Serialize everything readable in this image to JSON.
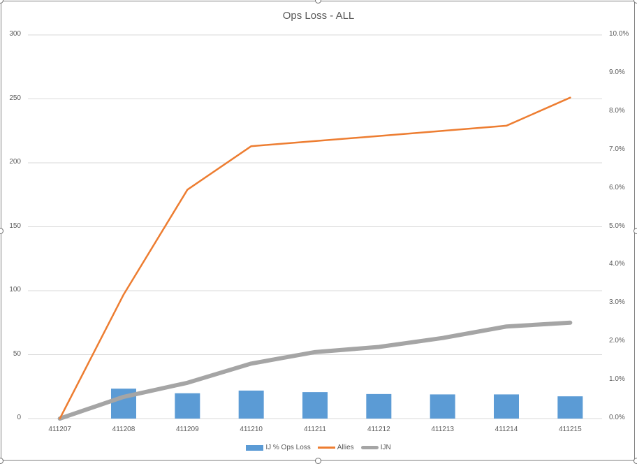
{
  "chart": {
    "title": "Ops Loss - ALL",
    "left_axis_ticks": [
      "0",
      "50",
      "100",
      "150",
      "200",
      "250",
      "300"
    ],
    "right_axis_ticks": [
      "0.0%",
      "1.0%",
      "2.0%",
      "3.0%",
      "4.0%",
      "5.0%",
      "6.0%",
      "7.0%",
      "8.0%",
      "9.0%",
      "10.0%"
    ],
    "categories": [
      "411207",
      "411208",
      "411209",
      "411210",
      "411211",
      "411212",
      "411213",
      "411214",
      "411215"
    ],
    "legend": [
      {
        "label": "IJ % Ops Loss",
        "color": "#5b9bd5",
        "kind": "bar"
      },
      {
        "label": "Allies",
        "color": "#ed7d31",
        "kind": "line"
      },
      {
        "label": "IJN",
        "color": "#a5a5a5",
        "kind": "line"
      }
    ]
  },
  "chart_data": {
    "type": "bar+line",
    "title": "Ops Loss - ALL",
    "xlabel": "",
    "ylabel": "",
    "categories": [
      "411207",
      "411208",
      "411209",
      "411210",
      "411211",
      "411212",
      "411213",
      "411214",
      "411215"
    ],
    "series": [
      {
        "name": "IJ % Ops Loss",
        "type": "bar",
        "axis": "secondary",
        "unit": "%",
        "values": [
          0.0,
          0.78,
          0.66,
          0.73,
          0.69,
          0.64,
          0.63,
          0.63,
          0.58
        ],
        "color": "#5b9bd5"
      },
      {
        "name": "Allies",
        "type": "line",
        "axis": "primary",
        "values": [
          0,
          97,
          179,
          213,
          217,
          221,
          225,
          229,
          251
        ],
        "color": "#ed7d31"
      },
      {
        "name": "IJN",
        "type": "line",
        "axis": "primary",
        "values": [
          0,
          17,
          28,
          43,
          52,
          56,
          63,
          72,
          75
        ],
        "color": "#a5a5a5"
      }
    ],
    "ylim": [
      0,
      300
    ],
    "ylim_secondary": [
      0,
      10
    ],
    "y_ticks": [
      0,
      50,
      100,
      150,
      200,
      250,
      300
    ],
    "y_secondary_ticks": [
      "0.0%",
      "1.0%",
      "2.0%",
      "3.0%",
      "4.0%",
      "5.0%",
      "6.0%",
      "7.0%",
      "8.0%",
      "9.0%",
      "10.0%"
    ],
    "grid": true,
    "legend_position": "bottom"
  }
}
